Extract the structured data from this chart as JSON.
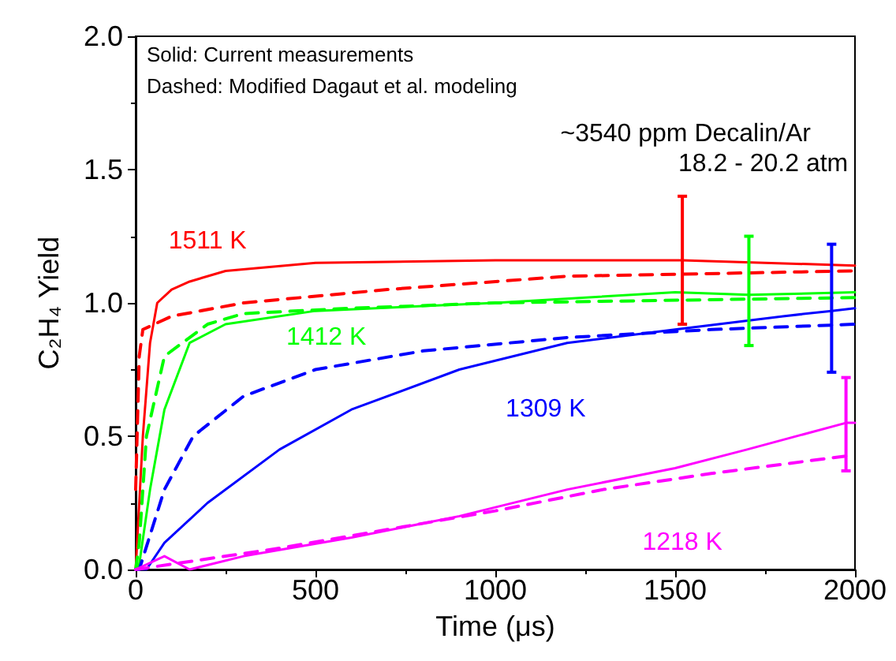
{
  "chart_data": {
    "type": "line",
    "xlabel": "Time (μs)",
    "ylabel": "C₂H₄ Yield",
    "xlim": [
      0,
      2000
    ],
    "ylim": [
      0,
      2
    ],
    "xticks": [
      0,
      500,
      1000,
      1500,
      2000
    ],
    "yticks": [
      {
        "value": 0,
        "label": "0.0"
      },
      0.5,
      {
        "value": 1,
        "label": "1.0"
      },
      1.5,
      {
        "value": 2,
        "label": "2.0"
      }
    ],
    "grid": false,
    "legend": false,
    "marker": "none",
    "annotations": [
      "Solid: Current measurements",
      "Dashed: Modified Dagaut et al. modeling",
      "~3540 ppm Decalin/Ar",
      "18.2 - 20.2 atm"
    ],
    "series": [
      {
        "name": "1511 K",
        "color": "#ff0000",
        "line_style": "solid",
        "x": [
          0,
          20,
          40,
          60,
          100,
          150,
          250,
          500,
          1000,
          1520,
          2000
        ],
        "values": [
          0,
          0.5,
          0.85,
          1.0,
          1.05,
          1.08,
          1.12,
          1.15,
          1.16,
          1.16,
          1.14
        ],
        "errors": [
          null,
          null,
          null,
          null,
          null,
          null,
          null,
          null,
          null,
          [
            0.92,
            1.4
          ],
          null
        ]
      },
      {
        "color": "#ff0000",
        "line_style": "dashed",
        "x": [
          0,
          10,
          20,
          100,
          300,
          700,
          1200,
          2000
        ],
        "values": [
          0.3,
          0.8,
          0.9,
          0.95,
          1.0,
          1.05,
          1.1,
          1.12
        ]
      },
      {
        "name": "1412 K",
        "color": "#00ff00",
        "line_style": "solid",
        "x": [
          0,
          10,
          40,
          80,
          150,
          250,
          500,
          1000,
          1500,
          1705,
          2000
        ],
        "values": [
          0,
          0.02,
          0.3,
          0.6,
          0.85,
          0.92,
          0.97,
          1.0,
          1.04,
          1.03,
          1.04
        ],
        "errors": [
          null,
          null,
          null,
          null,
          null,
          null,
          null,
          null,
          null,
          [
            0.84,
            1.25
          ],
          null
        ]
      },
      {
        "color": "#00ff00",
        "line_style": "dashed",
        "x": [
          0,
          10,
          30,
          80,
          200,
          300,
          600,
          1000,
          2000
        ],
        "values": [
          0,
          0.1,
          0.5,
          0.8,
          0.92,
          0.96,
          0.98,
          1.0,
          1.02
        ]
      },
      {
        "name": "1309 K",
        "color": "#0000ff",
        "line_style": "solid",
        "x": [
          0,
          30,
          80,
          200,
          400,
          600,
          900,
          1200,
          1500,
          1800,
          1935,
          2000
        ],
        "values": [
          0,
          0,
          0.1,
          0.25,
          0.45,
          0.6,
          0.75,
          0.85,
          0.9,
          0.95,
          0.97,
          0.98
        ],
        "errors": [
          null,
          null,
          null,
          null,
          null,
          null,
          null,
          null,
          null,
          null,
          [
            0.74,
            1.22
          ],
          null
        ]
      },
      {
        "color": "#0000ff",
        "line_style": "dashed",
        "x": [
          0,
          10,
          80,
          160,
          300,
          500,
          800,
          1200,
          1600,
          2000
        ],
        "values": [
          0,
          0,
          0.3,
          0.5,
          0.65,
          0.75,
          0.82,
          0.87,
          0.9,
          0.92
        ]
      },
      {
        "name": "1218 K",
        "color": "#ff00ff",
        "line_style": "solid",
        "x": [
          0,
          80,
          150,
          300,
          600,
          900,
          1200,
          1500,
          1700,
          1975,
          2000
        ],
        "values": [
          0,
          0.05,
          0,
          0.05,
          0.12,
          0.2,
          0.3,
          0.38,
          0.45,
          0.55,
          0.55
        ],
        "errors": [
          null,
          null,
          null,
          null,
          null,
          null,
          null,
          null,
          null,
          [
            0.37,
            0.72
          ],
          null
        ]
      },
      {
        "color": "#ff00ff",
        "line_style": "dashed",
        "x": [
          0,
          100,
          400,
          700,
          1000,
          1300,
          1600,
          2000
        ],
        "values": [
          0,
          0.02,
          0.08,
          0.15,
          0.22,
          0.3,
          0.36,
          0.43
        ]
      }
    ]
  }
}
